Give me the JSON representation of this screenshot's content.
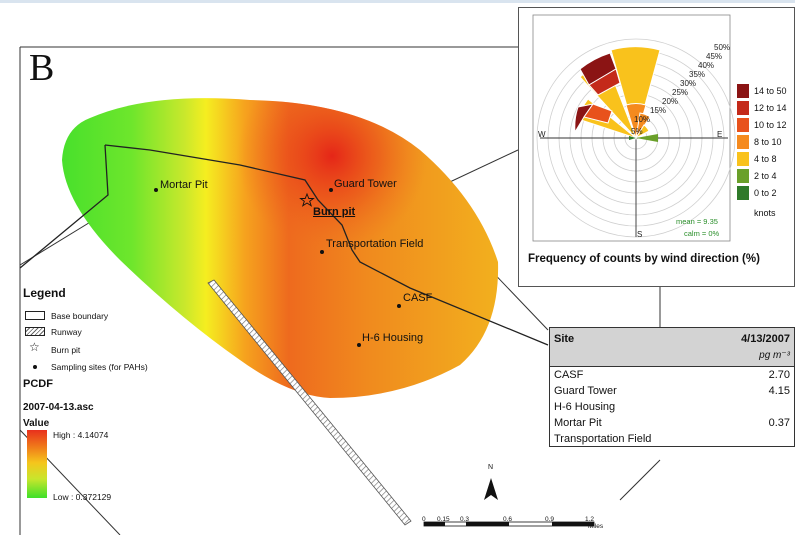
{
  "panel_letter": "B",
  "map": {
    "sites": [
      {
        "label": "Mortar Pit"
      },
      {
        "label": "Guard Tower"
      },
      {
        "label": "Transportation Field"
      },
      {
        "label": "CASF"
      },
      {
        "label": "H-6 Housing"
      }
    ],
    "burn_pit_label": "Burn pit",
    "north_label": "N",
    "scale": {
      "ticks": [
        "0",
        "0.15",
        "0.3",
        "0.6",
        "0.9",
        "1.2"
      ],
      "unit": "Miles"
    }
  },
  "legend": {
    "title": "Legend",
    "items": [
      {
        "label": "Base boundary",
        "icon": "outline-box-icon"
      },
      {
        "label": "Runway",
        "icon": "hatched-box-icon"
      },
      {
        "label": "Burn pit",
        "icon": "star-icon"
      },
      {
        "label": "Sampling sites (for PAHs)",
        "icon": "dot-icon"
      }
    ],
    "layer_name": "PCDF",
    "raster_file": "2007-04-13.asc",
    "value_title": "Value",
    "high_label": "High : 4.14074",
    "low_label": "Low : 0.372129",
    "high_value": 4.14074,
    "low_value": 0.372129,
    "ramp_colors": [
      "#e8301c",
      "#f07b1a",
      "#f5c51c",
      "#c8e62c",
      "#3ee02a"
    ]
  },
  "wind_rose": {
    "title": "Frequency of counts by wind direction (%)",
    "percent_labels": [
      "5%",
      "10%",
      "15%",
      "20%",
      "25%",
      "30%",
      "35%",
      "40%",
      "45%",
      "50%"
    ],
    "compass": {
      "north": "N",
      "south": "S",
      "east": "E",
      "west": "W"
    },
    "mean_label": "mean = 9.35",
    "calm_label": "calm = 0%",
    "units_label": "knots",
    "speed_bins": [
      {
        "label": "14 to 50",
        "color": "#8b1414"
      },
      {
        "label": "12 to 14",
        "color": "#c42a1a"
      },
      {
        "label": "10 to 12",
        "color": "#e8521c"
      },
      {
        "label": "8 to 10",
        "color": "#f58a1e"
      },
      {
        "label": "4 to 8",
        "color": "#f9c21c"
      },
      {
        "label": "2 to 4",
        "color": "#6aa02a"
      },
      {
        "label": "0 to 2",
        "color": "#2f7a2a"
      }
    ]
  },
  "table": {
    "col_site": "Site",
    "col_date": "4/13/2007",
    "unit": "pg m⁻³",
    "rows": [
      {
        "site": "CASF",
        "value": "2.70"
      },
      {
        "site": "Guard Tower",
        "value": "4.15"
      },
      {
        "site": "H-6 Housing",
        "value": ""
      },
      {
        "site": "Mortar Pit",
        "value": "0.37"
      },
      {
        "site": "Transportation Field",
        "value": ""
      }
    ]
  }
}
